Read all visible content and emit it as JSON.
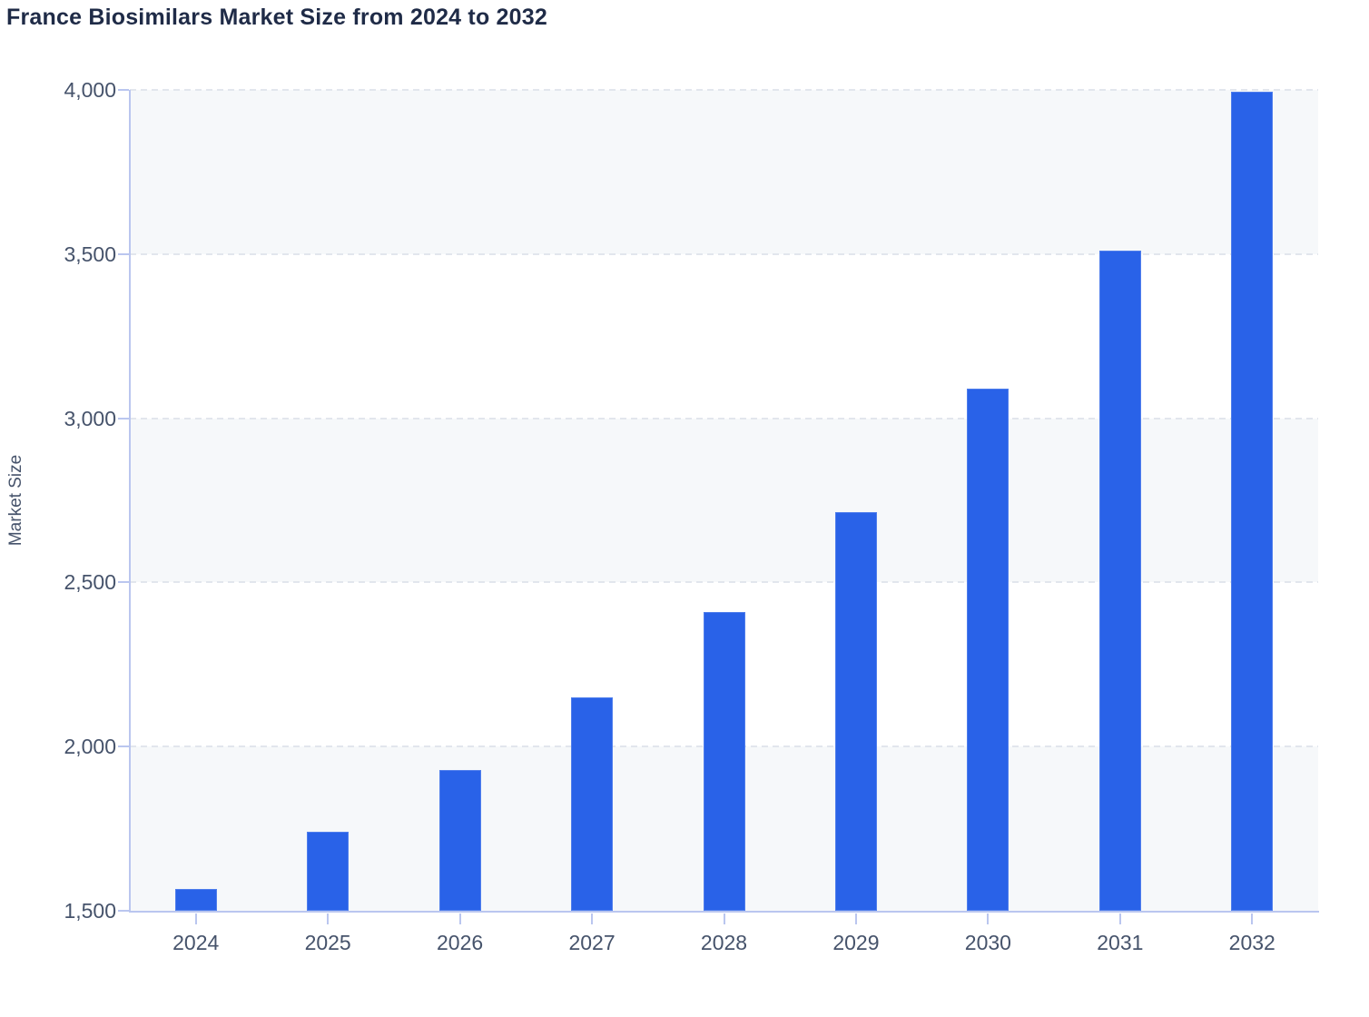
{
  "header": {
    "title": "France Biosimilars Market Size from 2024 to 2032"
  },
  "chart_data": {
    "type": "bar",
    "title": "France Biosimilars Market Size from 2024 to 2032",
    "categories": [
      "2024",
      "2025",
      "2026",
      "2027",
      "2028",
      "2029",
      "2030",
      "2031",
      "2032"
    ],
    "values": [
      1565,
      1740,
      1930,
      2150,
      2410,
      2715,
      3090,
      3510,
      3995
    ],
    "series_name": "Market Size",
    "xlabel": "",
    "ylabel": "Market Size",
    "ylim": [
      1500,
      4000
    ],
    "yticks": [
      1500,
      2000,
      2500,
      3000,
      3500,
      4000
    ],
    "ytick_labels": [
      "1,500",
      "2,000",
      "2,500",
      "3,000",
      "3,500",
      "4,000"
    ],
    "grid": "horizontal-dashed",
    "alternating_bands": true,
    "legend": "none",
    "colors": {
      "bar": "#2962e8",
      "band": "#f6f8fa",
      "gridline": "#e2e6ed",
      "axis_line": "#bac6ef",
      "tick_label": "#46536b",
      "title": "#1f2b47",
      "background": "#ffffff"
    }
  }
}
